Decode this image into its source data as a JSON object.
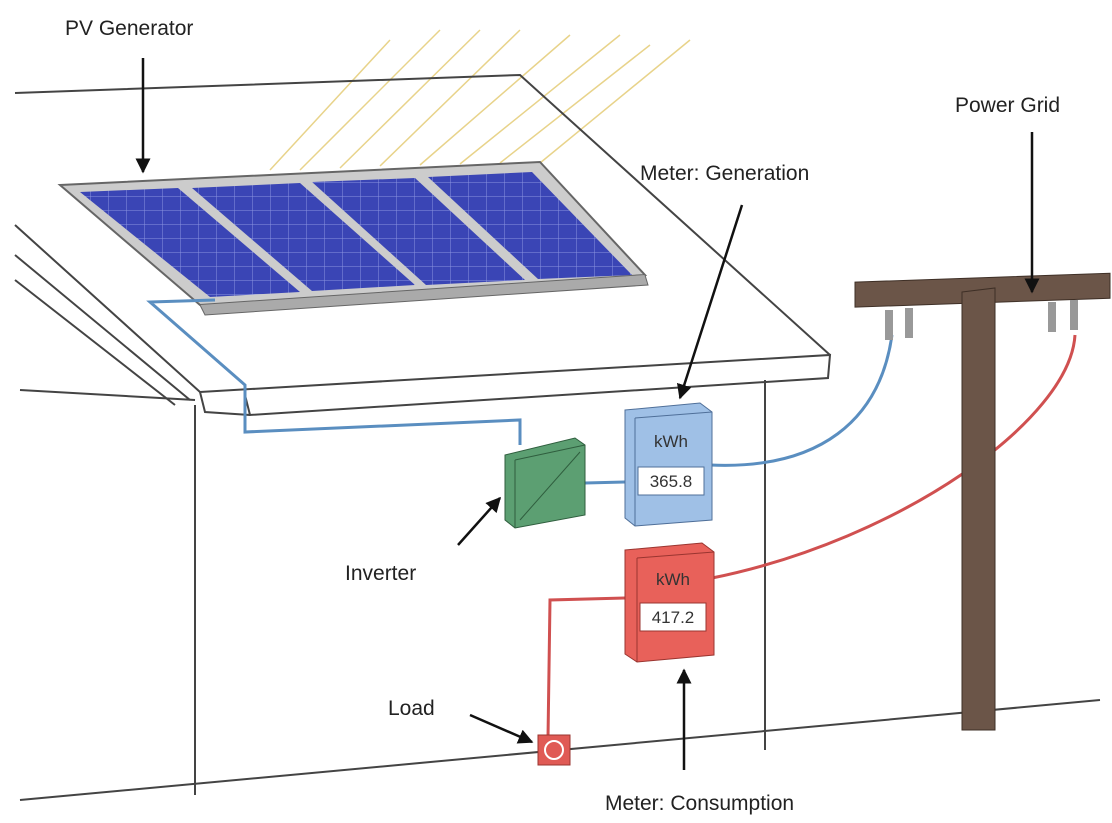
{
  "labels": {
    "pv_generator": "PV Generator",
    "power_grid": "Power Grid",
    "meter_generation": "Meter: Generation",
    "inverter": "Inverter",
    "load": "Load",
    "meter_consumption": "Meter: Consumption"
  },
  "meters": [
    {
      "unit": "kWh",
      "reading": "365.8"
    },
    {
      "unit": "kWh",
      "reading": "417.2"
    }
  ]
}
